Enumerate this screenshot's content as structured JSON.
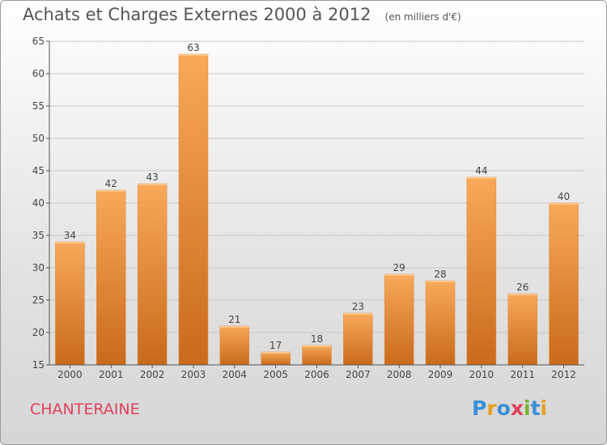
{
  "title": "Achats et Charges Externes 2000 à 2012",
  "unit": "(en milliers d'€)",
  "commune": "CHANTERAINE",
  "logo": {
    "text": "Proxiti",
    "letters": [
      {
        "ch": "P",
        "color": "#3a8fd6"
      },
      {
        "ch": "r",
        "color": "#e8a020"
      },
      {
        "ch": "o",
        "color": "#3a8fd6"
      },
      {
        "ch": "x",
        "color": "#e0405a"
      },
      {
        "ch": "i",
        "color": "#7ab030"
      },
      {
        "ch": "t",
        "color": "#3a8fd6"
      },
      {
        "ch": "i",
        "color": "#e8a020"
      }
    ]
  },
  "colors": {
    "bar_light": "#f8a95a",
    "bar_dark": "#c96a1c",
    "grid": "#c8c8c8",
    "axis_text": "#444444",
    "commune": "#e0405a"
  },
  "chart_data": {
    "type": "bar",
    "categories": [
      "2000",
      "2001",
      "2002",
      "2003",
      "2004",
      "2005",
      "2006",
      "2007",
      "2008",
      "2009",
      "2010",
      "2011",
      "2012"
    ],
    "values": [
      34,
      42,
      43,
      63,
      21,
      17,
      18,
      23,
      29,
      28,
      44,
      26,
      40
    ],
    "ylim": [
      15,
      65
    ],
    "yticks": [
      15,
      20,
      25,
      30,
      35,
      40,
      45,
      50,
      55,
      60,
      65
    ],
    "grid": true,
    "xlabel": "",
    "ylabel": ""
  }
}
